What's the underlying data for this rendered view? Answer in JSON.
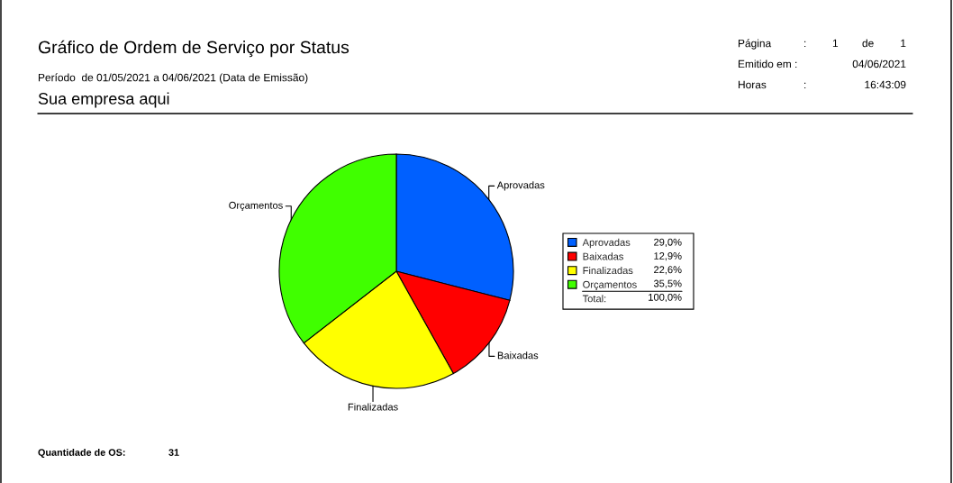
{
  "chart_data": {
    "type": "pie",
    "title": "Gráfico de Ordem de Serviço por Status",
    "subtitle": "Período  de 01/05/2021 a 04/06/2021 (Data de Emissão)",
    "categories": [
      "Aprovadas",
      "Baixadas",
      "Finalizadas",
      "Orçamentos"
    ],
    "values": [
      29.0,
      12.9,
      22.6,
      35.5
    ],
    "colors": [
      "#0060ff",
      "#ff0000",
      "#ffff00",
      "#40ff00"
    ],
    "value_labels": [
      "29,0%",
      "12,9%",
      "22,6%",
      "35,5%"
    ],
    "totals": [
      "100,0%"
    ],
    "legend": "right",
    "annotations": [
      "Página",
      ":",
      "1",
      "de",
      "1",
      "Emitido em :",
      "04/06/2021",
      "Horas",
      ":",
      "16:43:09",
      "Sua empresa aqui",
      "Quantidade de OS:",
      "31",
      "Total:"
    ]
  }
}
